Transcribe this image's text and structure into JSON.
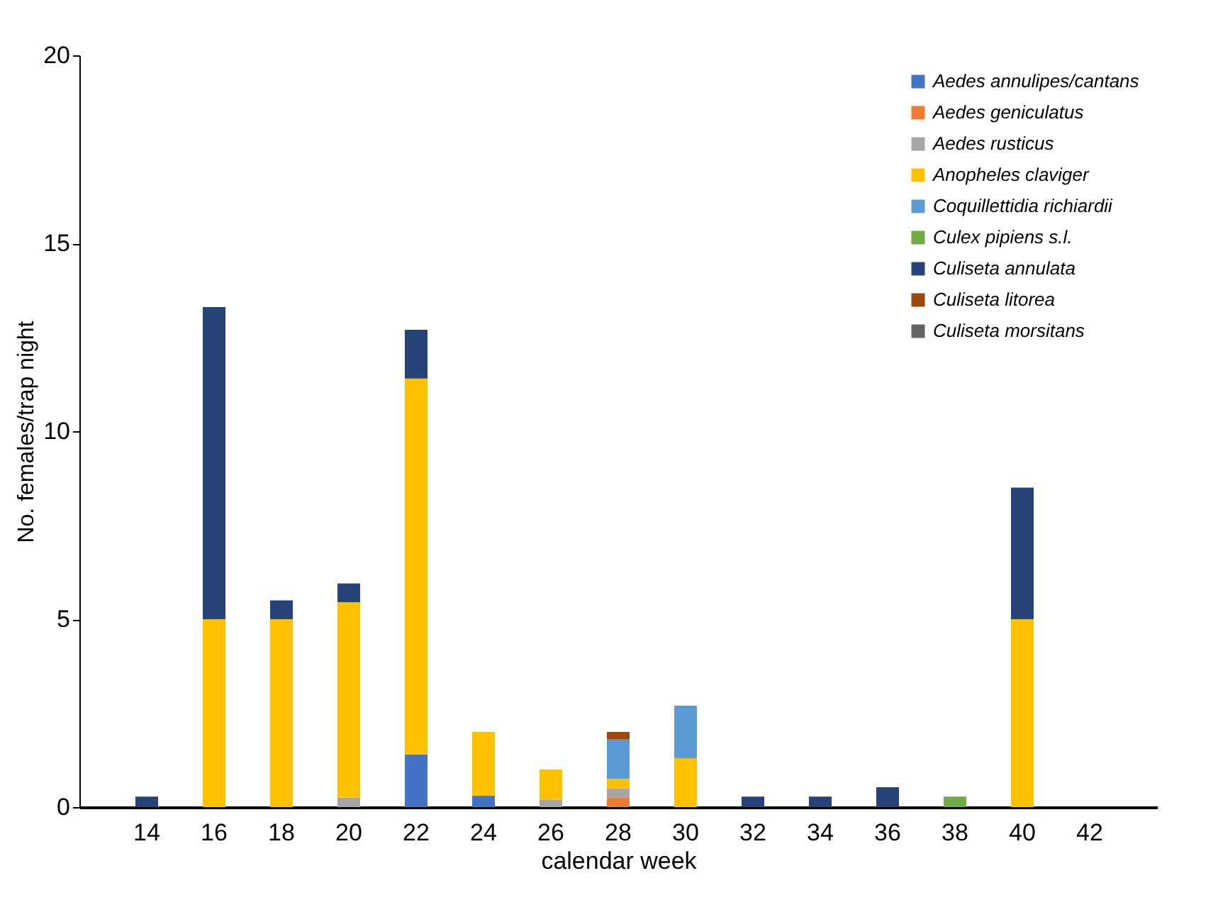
{
  "chart_data": {
    "type": "bar",
    "stacked": true,
    "xlabel": "calendar week",
    "ylabel": "No. females/trap night",
    "categories": [
      "14",
      "16",
      "18",
      "20",
      "22",
      "24",
      "26",
      "28",
      "30",
      "32",
      "34",
      "36",
      "38",
      "40",
      "42"
    ],
    "ylim": [
      0,
      20
    ],
    "yticks": [
      0,
      5,
      10,
      15,
      20
    ],
    "grid": false,
    "legend": "top right",
    "series": [
      {
        "name": "Aedes annulipes/cantans",
        "color": "#4472c4",
        "values": [
          null,
          null,
          null,
          null,
          1.4,
          0.3,
          null,
          null,
          null,
          null,
          null,
          null,
          null,
          null,
          null
        ]
      },
      {
        "name": "Aedes geniculatus",
        "color": "#ed7d31",
        "values": [
          null,
          null,
          null,
          null,
          null,
          null,
          null,
          0.25,
          null,
          null,
          null,
          null,
          null,
          null,
          null
        ]
      },
      {
        "name": "Aedes rusticus",
        "color": "#a5a5a5",
        "values": [
          null,
          null,
          null,
          0.25,
          null,
          null,
          0.2,
          0.25,
          null,
          null,
          null,
          null,
          null,
          null,
          null
        ]
      },
      {
        "name": "Anopheles claviger",
        "color": "#ffc000",
        "values": [
          null,
          5,
          5,
          5.2,
          10,
          1.7,
          0.8,
          0.25,
          1.3,
          null,
          null,
          null,
          null,
          5,
          null
        ]
      },
      {
        "name": "Coquillettidia richiardii",
        "color": "#5b9bd5",
        "values": [
          null,
          null,
          null,
          null,
          null,
          null,
          null,
          1.05,
          1.4,
          null,
          null,
          null,
          null,
          null,
          null
        ]
      },
      {
        "name": "Culex pipiens s.l.",
        "color": "#70ad47",
        "values": [
          null,
          null,
          null,
          null,
          null,
          null,
          null,
          null,
          null,
          null,
          null,
          null,
          0.28,
          null,
          null
        ]
      },
      {
        "name": "Culiseta annulata",
        "color": "#264478",
        "values": [
          0.28,
          8.3,
          0.5,
          0.5,
          1.3,
          null,
          null,
          null,
          null,
          0.28,
          0.28,
          0.53,
          null,
          3.5,
          null
        ]
      },
      {
        "name": "Culiseta litorea",
        "color": "#9e480e",
        "values": [
          null,
          null,
          null,
          null,
          null,
          null,
          null,
          0.2,
          null,
          null,
          null,
          null,
          null,
          null,
          null
        ]
      },
      {
        "name": "Culiseta morsitans",
        "color": "#636363",
        "values": [
          null,
          null,
          null,
          null,
          null,
          null,
          null,
          null,
          null,
          null,
          null,
          null,
          null,
          null,
          null
        ]
      }
    ]
  }
}
